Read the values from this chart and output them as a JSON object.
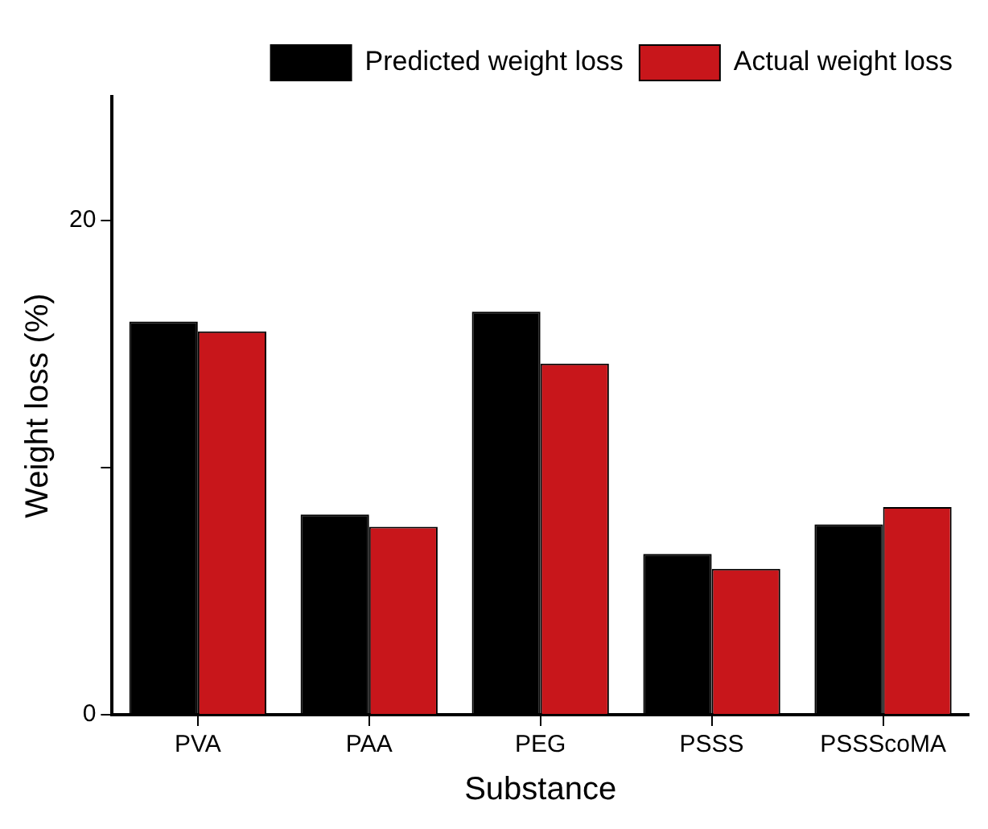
{
  "chart_data": {
    "type": "bar",
    "xlabel": "Substance",
    "ylabel": "Weight loss (%)",
    "categories": [
      "PVA",
      "PAA",
      "PEG",
      "PSSS",
      "PSSScoMA"
    ],
    "series": [
      {
        "name": "Predicted weight loss",
        "color": "#000000",
        "values": [
          15.9,
          8.1,
          16.3,
          6.5,
          7.7
        ]
      },
      {
        "name": "Actual weight loss",
        "color": "#c8161b",
        "values": [
          15.5,
          7.6,
          14.2,
          5.9,
          8.4
        ]
      }
    ],
    "ylim": [
      0,
      25
    ],
    "yticks": [
      0,
      {
        "value": 10,
        "label": null
      },
      20
    ],
    "grid": false,
    "legend": "top right"
  }
}
